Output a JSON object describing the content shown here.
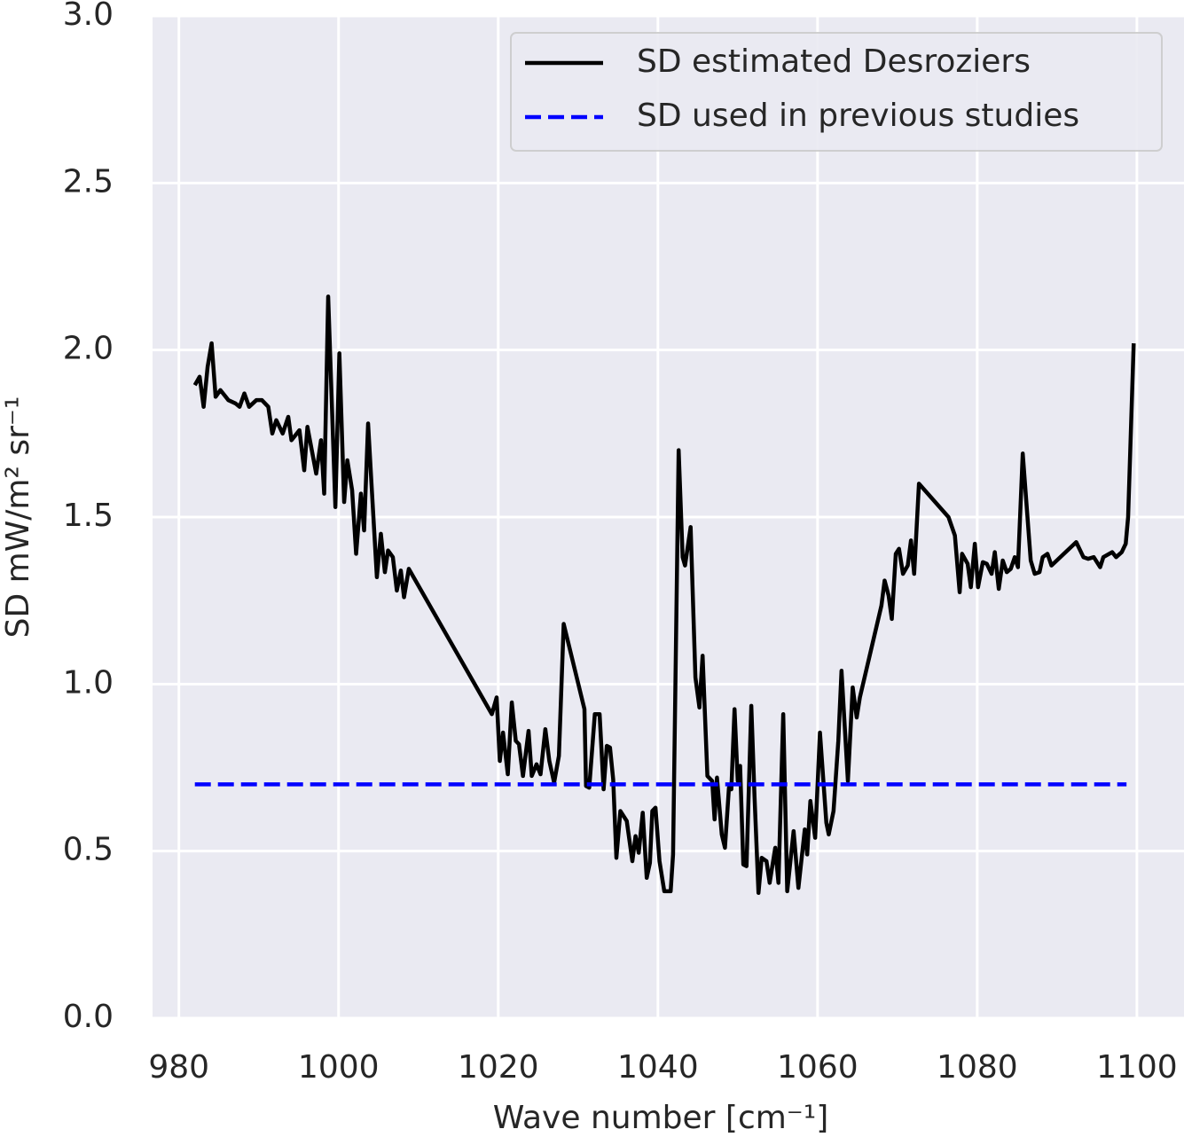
{
  "chart_data": {
    "type": "line",
    "xlabel": "Wave number [cm⁻¹]",
    "ylabel": "SD mW/m² sr⁻¹",
    "xlim": [
      976.7,
      1105.9
    ],
    "xticks": [
      980,
      1000,
      1020,
      1040,
      1060,
      1080,
      1100
    ],
    "ylim": [
      0,
      3
    ],
    "yticks": [
      {
        "value": 0,
        "label": "0.0"
      },
      0.5,
      {
        "value": 1,
        "label": "1.0"
      },
      1.5,
      {
        "value": 2,
        "label": "2.0"
      },
      2.5,
      {
        "value": 3,
        "label": "3.0"
      }
    ],
    "grid": true,
    "legend": "upper right",
    "series": [
      {
        "name": "SD estimated Desroziers",
        "color": "#000000",
        "linestyle": "solid",
        "x": [
          982.0,
          982.6,
          983.1,
          983.6,
          984.1,
          984.6,
          985.2,
          986.2,
          987.1,
          987.6,
          988.2,
          988.8,
          989.7,
          990.4,
          991.2,
          991.7,
          992.2,
          993.0,
          993.7,
          994.1,
          995.1,
          995.7,
          996.1,
          997.2,
          997.8,
          998.2,
          998.7,
          999.6,
          1000.1,
          1000.7,
          1001.1,
          1001.7,
          1002.2,
          1002.8,
          1003.2,
          1003.7,
          1004.1,
          1004.8,
          1005.3,
          1005.8,
          1006.2,
          1006.8,
          1007.3,
          1007.8,
          1008.2,
          1008.8,
          1019.2,
          1019.8,
          1020.2,
          1020.6,
          1021.2,
          1021.7,
          1022.2,
          1022.6,
          1023.1,
          1023.8,
          1024.2,
          1024.8,
          1025.3,
          1025.9,
          1026.4,
          1027.0,
          1027.6,
          1028.2,
          1030.8,
          1031.0,
          1031.4,
          1032.1,
          1032.7,
          1033.2,
          1033.6,
          1034.0,
          1034.4,
          1034.8,
          1035.3,
          1036.1,
          1036.8,
          1037.2,
          1037.6,
          1038.1,
          1038.6,
          1039.0,
          1039.3,
          1039.7,
          1040.2,
          1040.8,
          1041.6,
          1041.9,
          1042.6,
          1043.1,
          1043.4,
          1044.1,
          1044.7,
          1045.2,
          1045.6,
          1046.2,
          1046.8,
          1047.1,
          1047.4,
          1048.0,
          1048.4,
          1048.9,
          1049.2,
          1049.6,
          1050.0,
          1050.3,
          1050.7,
          1051.1,
          1051.7,
          1052.1,
          1052.6,
          1053.0,
          1053.6,
          1054.0,
          1054.7,
          1055.1,
          1055.7,
          1056.2,
          1057.0,
          1057.6,
          1058.4,
          1058.7,
          1059.1,
          1059.7,
          1060.3,
          1061.1,
          1061.4,
          1062.0,
          1062.6,
          1063.0,
          1063.8,
          1064.4,
          1064.9,
          1065.3,
          1068.0,
          1068.4,
          1068.9,
          1069.3,
          1069.8,
          1070.2,
          1070.7,
          1071.3,
          1071.7,
          1072.1,
          1072.7,
          1076.4,
          1077.2,
          1077.8,
          1078.1,
          1078.8,
          1079.2,
          1079.7,
          1080.1,
          1080.7,
          1081.2,
          1081.8,
          1082.2,
          1082.7,
          1083.2,
          1083.7,
          1084.2,
          1084.7,
          1085.1,
          1085.7,
          1086.7,
          1087.2,
          1087.8,
          1088.2,
          1088.8,
          1089.3,
          1092.4,
          1093.3,
          1093.9,
          1094.6,
          1095.4,
          1095.8,
          1096.9,
          1097.4,
          1098.1,
          1098.6,
          1098.9,
          1099.6
        ],
        "values": [
          1.895,
          1.92,
          1.83,
          1.95,
          2.02,
          1.86,
          1.88,
          1.85,
          1.84,
          1.83,
          1.87,
          1.83,
          1.85,
          1.85,
          1.83,
          1.75,
          1.79,
          1.75,
          1.8,
          1.73,
          1.76,
          1.64,
          1.77,
          1.63,
          1.73,
          1.57,
          2.16,
          1.53,
          1.99,
          1.545,
          1.67,
          1.58,
          1.39,
          1.57,
          1.46,
          1.78,
          1.61,
          1.32,
          1.45,
          1.335,
          1.4,
          1.38,
          1.28,
          1.34,
          1.26,
          1.345,
          0.91,
          0.96,
          0.77,
          0.855,
          0.73,
          0.945,
          0.83,
          0.82,
          0.725,
          0.86,
          0.725,
          0.76,
          0.73,
          0.865,
          0.77,
          0.705,
          0.785,
          1.18,
          0.925,
          0.695,
          0.69,
          0.91,
          0.91,
          0.685,
          0.815,
          0.81,
          0.715,
          0.48,
          0.62,
          0.59,
          0.47,
          0.545,
          0.495,
          0.615,
          0.42,
          0.465,
          0.62,
          0.63,
          0.47,
          0.38,
          0.38,
          0.49,
          1.7,
          1.38,
          1.355,
          1.47,
          1.02,
          0.93,
          1.085,
          0.725,
          0.71,
          0.595,
          0.72,
          0.55,
          0.51,
          0.69,
          0.685,
          0.925,
          0.71,
          0.755,
          0.46,
          0.455,
          0.935,
          0.665,
          0.375,
          0.48,
          0.47,
          0.405,
          0.51,
          0.405,
          0.91,
          0.38,
          0.56,
          0.39,
          0.565,
          0.49,
          0.65,
          0.54,
          0.855,
          0.585,
          0.55,
          0.62,
          0.83,
          1.04,
          0.71,
          0.99,
          0.9,
          0.96,
          1.235,
          1.31,
          1.265,
          1.195,
          1.39,
          1.405,
          1.33,
          1.355,
          1.43,
          1.33,
          1.6,
          1.5,
          1.445,
          1.275,
          1.39,
          1.36,
          1.29,
          1.42,
          1.29,
          1.365,
          1.36,
          1.33,
          1.395,
          1.285,
          1.37,
          1.335,
          1.345,
          1.38,
          1.35,
          1.69,
          1.37,
          1.33,
          1.335,
          1.38,
          1.39,
          1.355,
          1.425,
          1.38,
          1.375,
          1.38,
          1.35,
          1.38,
          1.395,
          1.38,
          1.395,
          1.42,
          1.5,
          2.02
        ]
      },
      {
        "name": "SD used in previous studies",
        "color": "#0000ff",
        "linestyle": "dashed",
        "x": [
          982.0,
          1098.7
        ],
        "values": [
          0.7,
          0.7
        ]
      }
    ]
  }
}
